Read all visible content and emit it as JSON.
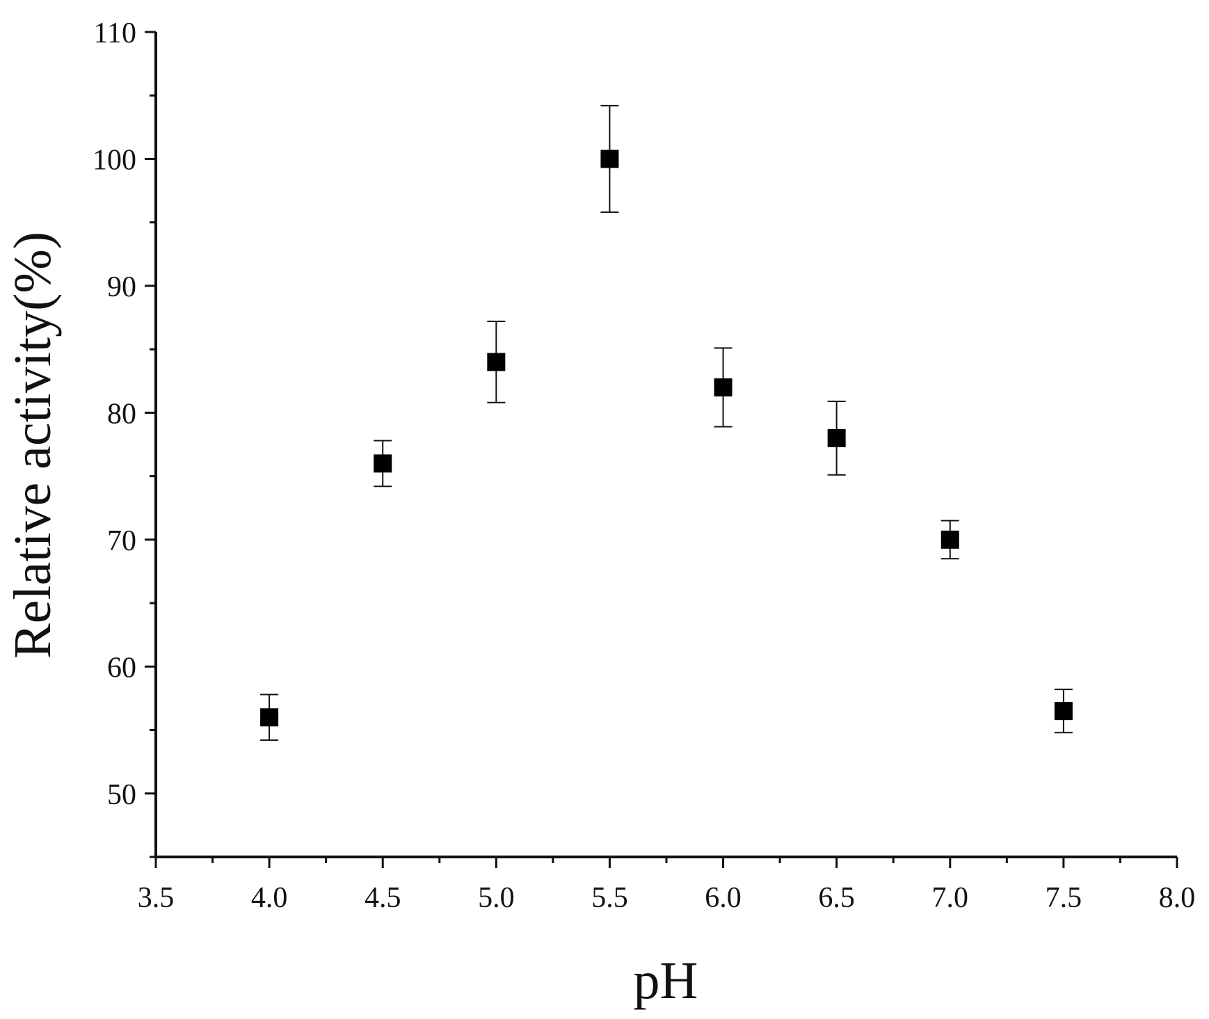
{
  "chart_data": {
    "type": "scatter",
    "title": "",
    "xlabel": "pH",
    "ylabel": "Relative activity(%)",
    "xlim": [
      3.5,
      8.0
    ],
    "ylim": [
      45,
      110
    ],
    "x_ticks": [
      3.5,
      4.0,
      4.5,
      5.0,
      5.5,
      6.0,
      6.5,
      7.0,
      7.5,
      8.0
    ],
    "x_tick_labels": [
      "3.5",
      "4.0",
      "4.5",
      "5.0",
      "5.5",
      "6.0",
      "6.5",
      "7.0",
      "7.5",
      "8.0"
    ],
    "y_ticks": [
      50,
      60,
      70,
      80,
      90,
      100,
      110
    ],
    "y_tick_labels": [
      "50",
      "60",
      "70",
      "80",
      "90",
      "100",
      "110"
    ],
    "grid": false,
    "marker": "square",
    "marker_color": "#000000",
    "series": [
      {
        "x": [
          4.0,
          4.5,
          5.0,
          5.5,
          6.0,
          6.5,
          7.0,
          7.5
        ],
        "y": [
          56,
          76,
          84,
          100,
          82,
          78,
          70,
          56.5
        ],
        "error": [
          1.8,
          1.8,
          3.2,
          4.2,
          3.1,
          2.9,
          1.5,
          1.7
        ]
      }
    ]
  }
}
